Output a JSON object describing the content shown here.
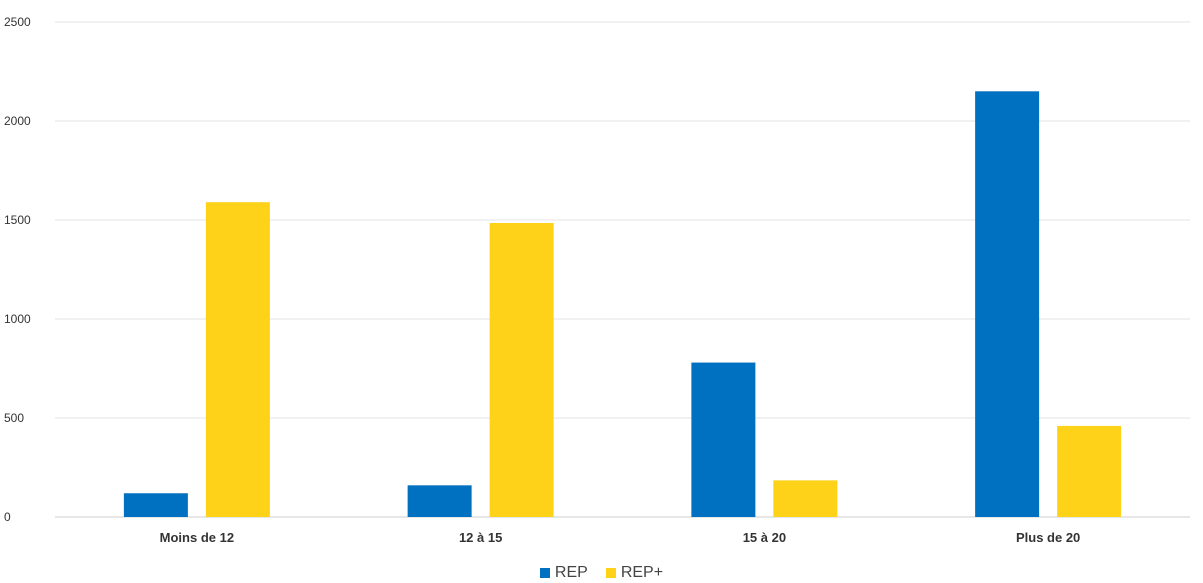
{
  "chart_data": {
    "type": "bar",
    "categories": [
      "Moins de 12",
      "12 à 15",
      "15 à 20",
      "Plus de 20"
    ],
    "series": [
      {
        "name": "REP",
        "color": "#0070C0",
        "values": [
          120,
          160,
          780,
          2150
        ]
      },
      {
        "name": "REP+",
        "color": "#FFD21A",
        "values": [
          1590,
          1485,
          185,
          460
        ]
      }
    ],
    "ylim": [
      0,
      2500
    ],
    "yticks": [
      0,
      500,
      1000,
      1500,
      2000,
      2500
    ],
    "grid": true,
    "legend_position": "bottom"
  }
}
